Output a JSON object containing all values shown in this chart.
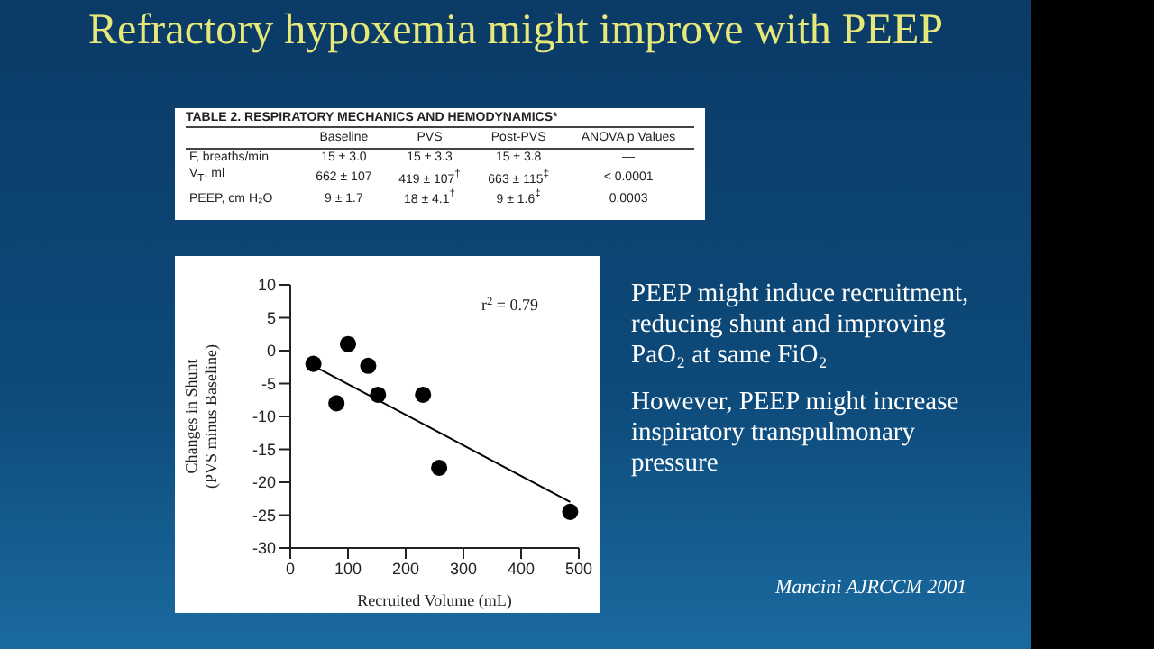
{
  "chart_data": {
    "type": "scatter",
    "title": "Refractory hypoxemia might improve with PEEP",
    "xlabel": "Recruited Volume (mL)",
    "ylabel": "Changes in Shunt (PVS minus Baseline)",
    "x": [
      40,
      80,
      100,
      135,
      152,
      230,
      258,
      485
    ],
    "series": [
      {
        "color": "#000000",
        "values": [
          -2,
          -8,
          1,
          -2.3,
          -6.7,
          -6.7,
          -17.8,
          -24.5
        ]
      },
      {
        "type": "line",
        "color": "#000000",
        "x": [
          40,
          485
        ],
        "values": [
          -2.3,
          -23
        ],
        "marker": "none"
      }
    ],
    "marker": "circle",
    "xlim": [
      0,
      500
    ],
    "xticks": [
      0,
      100,
      200,
      300,
      400,
      500
    ],
    "ylim": [
      -30,
      10
    ],
    "yticks": [
      -30,
      -25,
      -20,
      -15,
      -10,
      -5,
      0,
      5,
      10
    ],
    "grid": false,
    "legend": false,
    "annotations": [
      "r$^{2}$ = 0.79",
      "TABLE 2. RESPIRATORY MECHANICS AND HEMODYNAMICS*",
      "Baseline",
      "PVS",
      "Post-PVS",
      "ANOVA p Values",
      "F, breaths/min",
      "15 ± 3.0",
      "15 ± 3.3",
      "15 ± 3.8",
      "—",
      "V$_{T}$, ml",
      "662 ± 107",
      "419 ± 107$^{†}$",
      "663 ± 115$^{‡}$",
      "< 0.0001",
      "PEEP, cm H₂O",
      "9 ± 1.7",
      "18 ± 4.1$^{†}$",
      "9 ± 1.6$^{‡}$",
      "0.0003",
      "PEEP might induce recruitment, reducing shunt and improving PaO₂ at same FiO₂",
      "However, PEEP might increase inspiratory transpulmonary pressure",
      "Mancini AJRCCM 2001"
    ]
  }
}
